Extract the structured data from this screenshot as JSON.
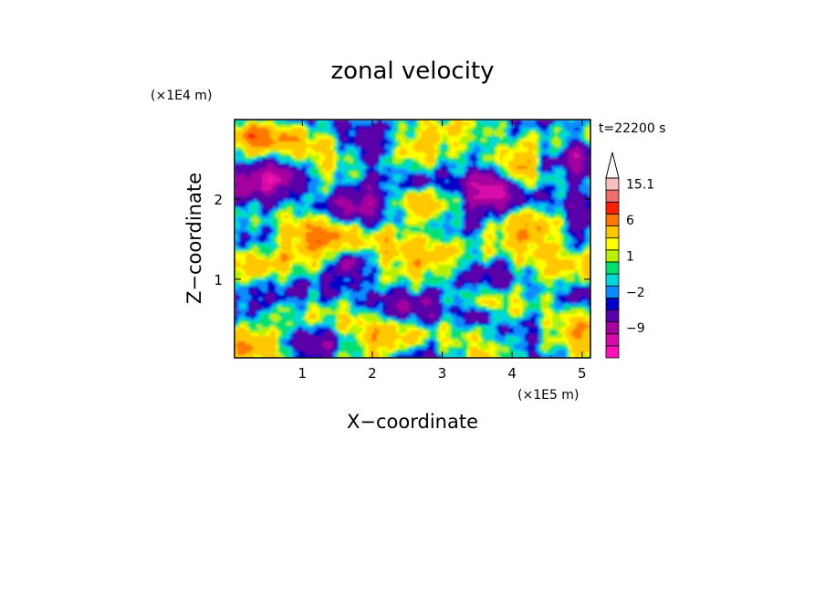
{
  "chart_data": {
    "type": "heatmap",
    "title": "zonal velocity",
    "time_label": "t=22200 s",
    "xlabel": "X−coordinate",
    "ylabel": "Z−coordinate",
    "x_unit": "(×1E5 m)",
    "y_unit": "(×1E4 m)",
    "xlim": [
      0.03,
      5.12
    ],
    "ylim": [
      0.02,
      2.99
    ],
    "x_ticks": [
      {
        "value": 1,
        "label": "1"
      },
      {
        "value": 2,
        "label": "2"
      },
      {
        "value": 3,
        "label": "3"
      },
      {
        "value": 4,
        "label": "4"
      },
      {
        "value": 5,
        "label": "5"
      }
    ],
    "y_ticks": [
      {
        "value": 1,
        "label": "1"
      },
      {
        "value": 2,
        "label": "2"
      }
    ],
    "colorbar": {
      "levels": [
        -15,
        -12,
        -9,
        -6,
        -3,
        -2,
        -1,
        0,
        1,
        2,
        3,
        6,
        9,
        12,
        15.1
      ],
      "colors": [
        "#ff10b8",
        "#d80aa8",
        "#a3009f",
        "#5a00a8",
        "#0000c8",
        "#0a8cff",
        "#00d8d8",
        "#00e070",
        "#b8f000",
        "#ffff00",
        "#ffc800",
        "#ff7800",
        "#ff2000",
        "#f07070",
        "#f8c0c0"
      ],
      "extend_top": true,
      "labels": [
        {
          "value": 15.1,
          "label": "15.1"
        },
        {
          "value": 6,
          "label": "6"
        },
        {
          "value": 1,
          "label": "1"
        },
        {
          "value": -2,
          "label": "−2"
        },
        {
          "value": -9,
          "label": "−9"
        }
      ]
    }
  }
}
